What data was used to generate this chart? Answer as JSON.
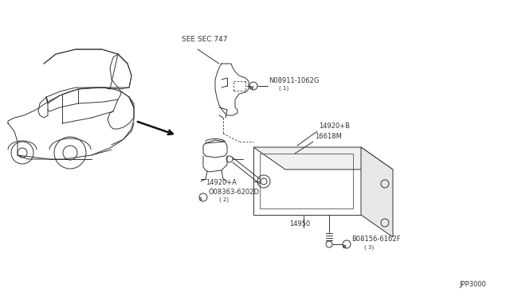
{
  "bg_color": "#ffffff",
  "line_color": "#333333",
  "fig_width": 6.4,
  "fig_height": 3.72,
  "dpi": 100,
  "labels": {
    "see_sec": "SEE SEC.747",
    "part1_num": "N08911-1062G",
    "part1_ref": "( 1)",
    "part2a_num": "14920+A",
    "part2b_num": "14920+B",
    "part3_num": "16618M",
    "part4_sym": "Ó08363-6202D",
    "part4_ref": "( 2)",
    "part5_num": "14950",
    "part6_sym": "B08156-6162F",
    "part6_ref": "( 3)",
    "diagram_code": "JPP3000"
  },
  "font_size": 7,
  "small_font": 6
}
